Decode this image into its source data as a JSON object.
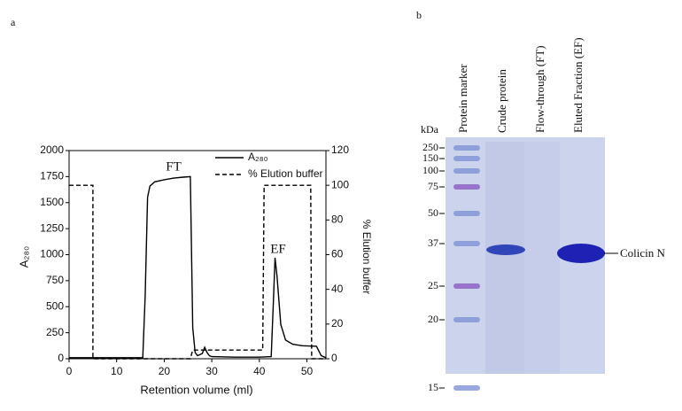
{
  "figure_labels": [
    "a",
    "b"
  ],
  "chart_data": {
    "type": "line",
    "x_label": "Retention volume (ml)",
    "y_label": "A₂₈₀",
    "y2_label": "% Elution buffer",
    "annotations": [
      "FT",
      "EF"
    ],
    "xlim": [
      0,
      54
    ],
    "xticks": [
      0,
      10,
      20,
      30,
      40,
      50
    ],
    "ylim": [
      0,
      2000
    ],
    "yticks": [
      0,
      250,
      500,
      750,
      1000,
      1250,
      1500,
      1750,
      2000
    ],
    "y2lim": [
      0,
      120
    ],
    "y2ticks": [
      0,
      20,
      40,
      60,
      80,
      100,
      120
    ],
    "legend": "upper right",
    "series": [
      {
        "name": "A₂₈₀",
        "color": "#000000",
        "dash": "solid",
        "x": [
          0,
          15.5,
          16,
          16.5,
          17,
          18,
          20,
          22,
          24,
          25.5,
          26,
          26.5,
          27,
          28,
          28.5,
          29,
          29.5,
          30,
          35,
          40,
          42.5,
          43,
          43.3,
          43.7,
          44.5,
          45.5,
          47,
          49,
          52,
          53,
          54
        ],
        "values": [
          10,
          10,
          600,
          1550,
          1660,
          1700,
          1720,
          1735,
          1745,
          1750,
          300,
          60,
          30,
          50,
          110,
          60,
          30,
          20,
          15,
          15,
          20,
          600,
          970,
          800,
          330,
          180,
          140,
          125,
          120,
          30,
          10
        ]
      },
      {
        "name": "% Elution buffer",
        "color": "#000000",
        "dash": "dashed",
        "axis": "y2",
        "x": [
          0,
          5,
          5,
          25.5,
          26,
          40.7,
          41,
          50.8,
          51,
          54
        ],
        "values": [
          100,
          100,
          0,
          0,
          5,
          5,
          100,
          100,
          0,
          0
        ]
      }
    ]
  },
  "gel": {
    "unit": "kDa",
    "lanes": [
      "Protein marker",
      "Crude protein",
      "Flow-through (FT)",
      "Eluted Fraction (EF)"
    ],
    "markers": [
      250,
      150,
      100,
      75,
      50,
      37,
      25,
      20,
      15
    ],
    "band_label": "Colicin N"
  }
}
